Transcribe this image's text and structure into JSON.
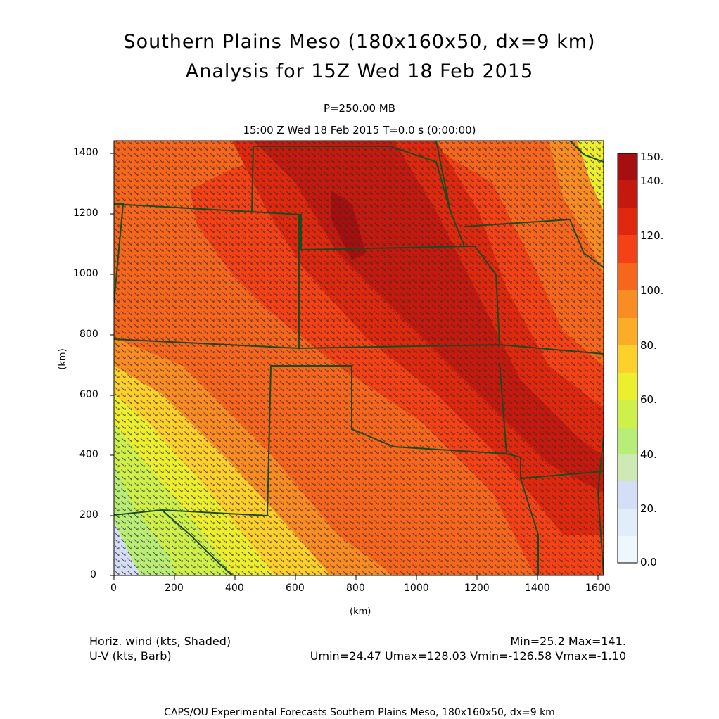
{
  "header": {
    "title_line1": "Southern Plains Meso (180x160x50, dx=9 km)",
    "title_line2": "Analysis for 15Z Wed 18 Feb 2015",
    "level": "P=250.00 MB",
    "valid_time": "15:00 Z Wed 18 Feb 2015    T=0.0 s (0:00:00)"
  },
  "axes": {
    "x_label": "(km)",
    "y_label": "(km)",
    "x_ticks": [
      "0",
      "200",
      "400",
      "600",
      "800",
      "1000",
      "1200",
      "1400",
      "1600"
    ],
    "y_ticks": [
      "0",
      "200",
      "400",
      "600",
      "800",
      "1000",
      "1200",
      "1400"
    ]
  },
  "colorbar": {
    "labels": [
      "150.",
      "140.",
      "120.",
      "100.",
      "80.",
      "60.",
      "40.",
      "20.",
      "0.0"
    ],
    "colors": [
      "#a50f0f",
      "#c4190f",
      "#e0280f",
      "#f44116",
      "#f7661d",
      "#fa8c24",
      "#fbad2a",
      "#fdd02c",
      "#ecef2e",
      "#cdf04a",
      "#b8ee78",
      "#cde9b4",
      "#d4def6",
      "#e1edf9",
      "#eef7fc"
    ]
  },
  "legend": {
    "field1": "Horiz. wind (kts, Shaded)",
    "field2": "U-V (kts, Barb)",
    "minmax": "Min=25.2 Max=141.",
    "uv_minmax": "Umin=24.47 Umax=128.03 Vmin=-126.58 Vmax=-1.10"
  },
  "footer": "CAPS/OU Experimental Forecasts  Southern Plains Meso, 180x160x50, dx=9 km"
}
